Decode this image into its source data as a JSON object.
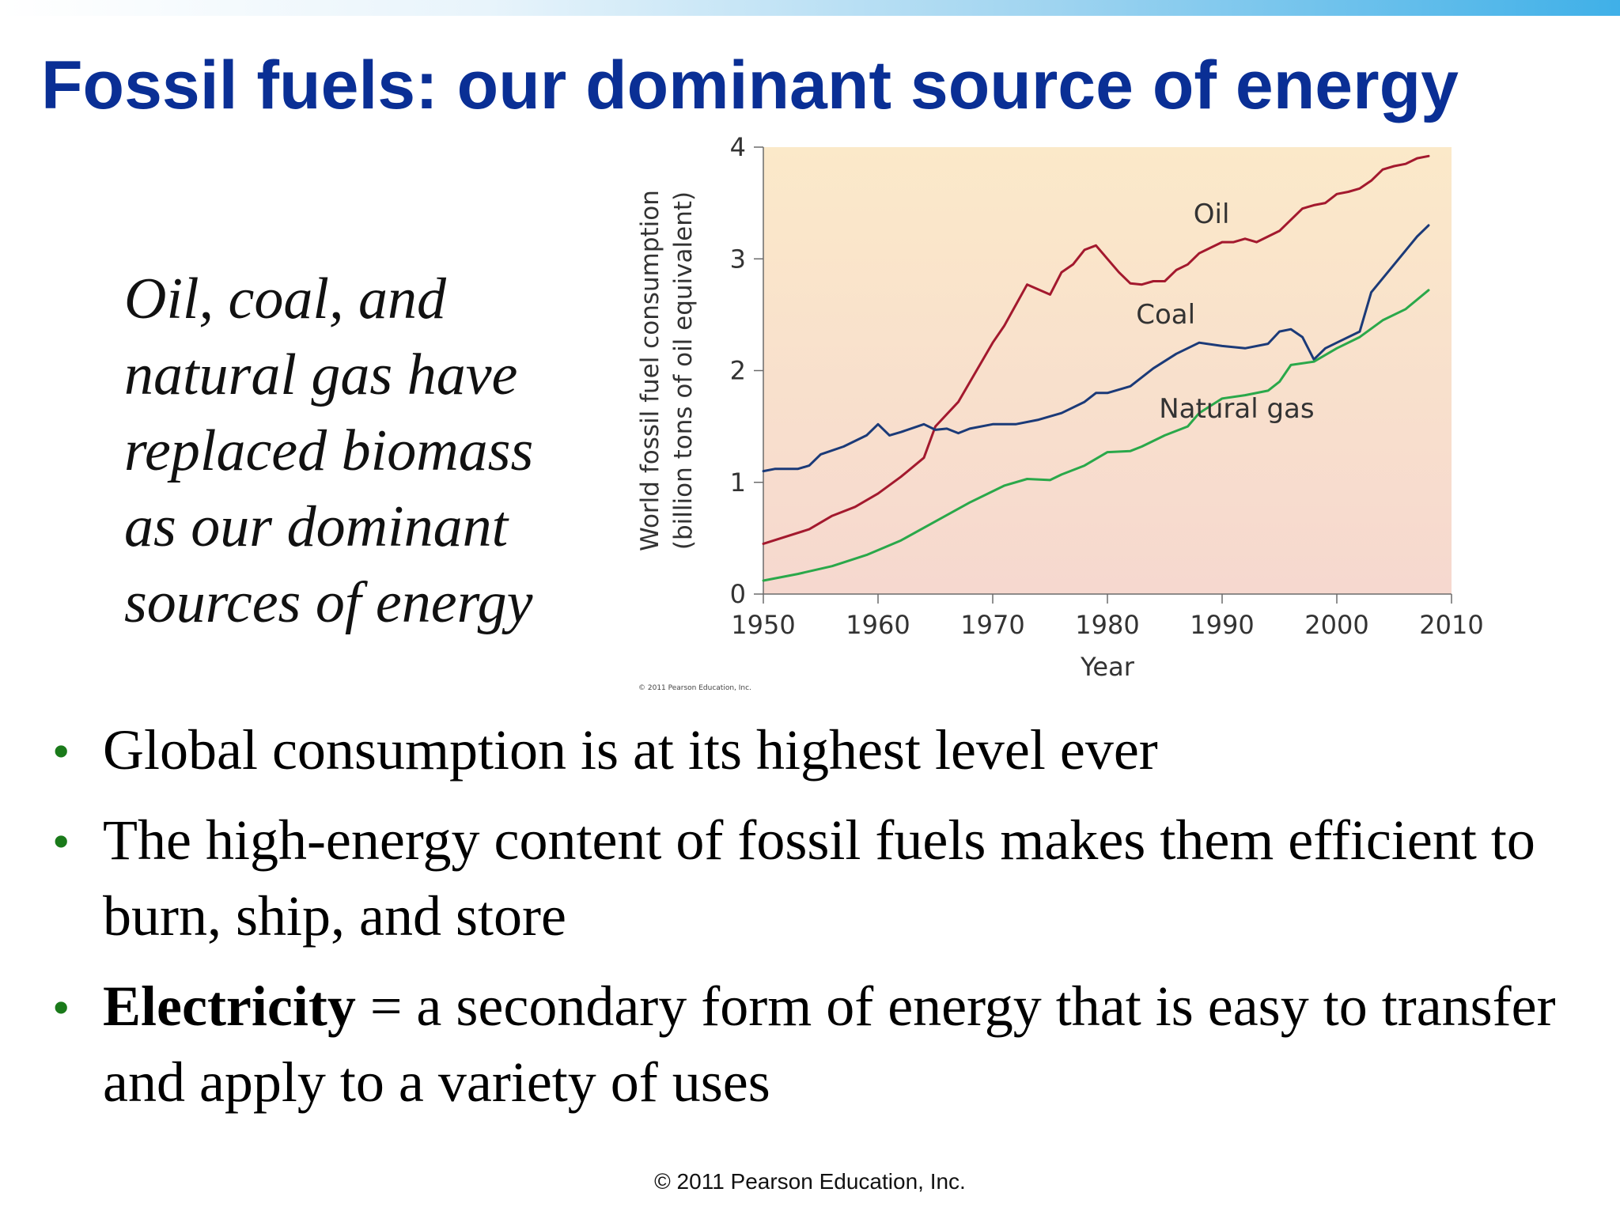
{
  "slide": {
    "title": "Fossil fuels: our dominant source of energy",
    "italic_lines": [
      "Oil, coal, and",
      "natural gas have",
      "replaced biomass",
      "as our dominant",
      "sources of energy"
    ],
    "bullets": [
      {
        "text": "Global consumption is at its highest level ever"
      },
      {
        "text": "The high-energy content of fossil fuels makes them efficient to burn, ship, and store"
      },
      {
        "bold": "Electricity",
        "text": " = a secondary form of energy that is easy to transfer and apply to a variety of uses"
      }
    ],
    "footer": "© 2011 Pearson Education, Inc.",
    "colors": {
      "title": "#0a2f95",
      "bullet": "#1a7a1a",
      "oil": "#a3192e",
      "coal": "#1b3a78",
      "gas": "#2aa84a"
    }
  },
  "chart_data": {
    "type": "line",
    "xlabel": "Year",
    "ylabel": "World fossil fuel consumption\n(billion tons of oil equivalent)",
    "xlim": [
      1950,
      2010
    ],
    "ylim": [
      0,
      4
    ],
    "x_ticks": [
      "1950",
      "1960",
      "1970",
      "1980",
      "1990",
      "2000",
      "2010"
    ],
    "y_ticks": [
      "0",
      "1",
      "2",
      "3",
      "4"
    ],
    "copyright": "© 2011 Pearson Education, Inc.",
    "series": [
      {
        "name": "Oil",
        "x": [
          1950,
          1954,
          1956,
          1958,
          1960,
          1962,
          1964,
          1965,
          1967,
          1970,
          1971,
          1973,
          1975,
          1976,
          1977,
          1978,
          1979,
          1980,
          1981,
          1982,
          1983,
          1984,
          1985,
          1986,
          1987,
          1988,
          1989,
          1990,
          1991,
          1992,
          1993,
          1994,
          1995,
          1996,
          1997,
          1998,
          1999,
          2000,
          2001,
          2002,
          2003,
          2004,
          2005,
          2006,
          2007,
          2008
        ],
        "values": [
          0.45,
          0.58,
          0.7,
          0.78,
          0.9,
          1.05,
          1.22,
          1.5,
          1.72,
          2.25,
          2.4,
          2.77,
          2.68,
          2.88,
          2.95,
          3.08,
          3.12,
          3.0,
          2.88,
          2.78,
          2.77,
          2.8,
          2.8,
          2.9,
          2.95,
          3.05,
          3.1,
          3.15,
          3.15,
          3.18,
          3.15,
          3.2,
          3.25,
          3.35,
          3.45,
          3.48,
          3.5,
          3.58,
          3.6,
          3.63,
          3.7,
          3.8,
          3.83,
          3.85,
          3.9,
          3.92
        ]
      },
      {
        "name": "Coal",
        "x": [
          1950,
          1951,
          1953,
          1954,
          1955,
          1957,
          1959,
          1960,
          1961,
          1962,
          1964,
          1965,
          1966,
          1967,
          1968,
          1970,
          1972,
          1974,
          1976,
          1978,
          1979,
          1980,
          1982,
          1984,
          1986,
          1988,
          1990,
          1992,
          1994,
          1995,
          1996,
          1997,
          1998,
          1999,
          2000,
          2002,
          2003,
          2005,
          2007,
          2008
        ],
        "values": [
          1.1,
          1.12,
          1.12,
          1.15,
          1.25,
          1.32,
          1.42,
          1.52,
          1.42,
          1.45,
          1.52,
          1.47,
          1.48,
          1.44,
          1.48,
          1.52,
          1.52,
          1.56,
          1.62,
          1.72,
          1.8,
          1.8,
          1.86,
          2.02,
          2.15,
          2.25,
          2.22,
          2.2,
          2.24,
          2.35,
          2.37,
          2.3,
          2.1,
          2.2,
          2.25,
          2.35,
          2.7,
          2.95,
          3.2,
          3.3
        ]
      },
      {
        "name": "Natural gas",
        "x": [
          1950,
          1953,
          1956,
          1959,
          1962,
          1965,
          1968,
          1971,
          1973,
          1975,
          1976,
          1978,
          1980,
          1982,
          1983,
          1985,
          1987,
          1988,
          1990,
          1992,
          1994,
          1995,
          1996,
          1998,
          2000,
          2002,
          2004,
          2006,
          2008
        ],
        "values": [
          0.12,
          0.18,
          0.25,
          0.35,
          0.48,
          0.65,
          0.82,
          0.97,
          1.03,
          1.02,
          1.07,
          1.15,
          1.27,
          1.28,
          1.32,
          1.42,
          1.5,
          1.62,
          1.75,
          1.78,
          1.82,
          1.9,
          2.05,
          2.08,
          2.2,
          2.3,
          2.45,
          2.55,
          2.72
        ]
      }
    ],
    "annotations": [
      {
        "series": "Oil",
        "text": "Oil",
        "x": 1987.5,
        "y": 3.32
      },
      {
        "series": "Coal",
        "text": "Coal",
        "x": 1982.5,
        "y": 2.42
      },
      {
        "series": "Natural gas",
        "text": "Natural gas",
        "x": 1984.5,
        "y": 1.58
      }
    ]
  }
}
